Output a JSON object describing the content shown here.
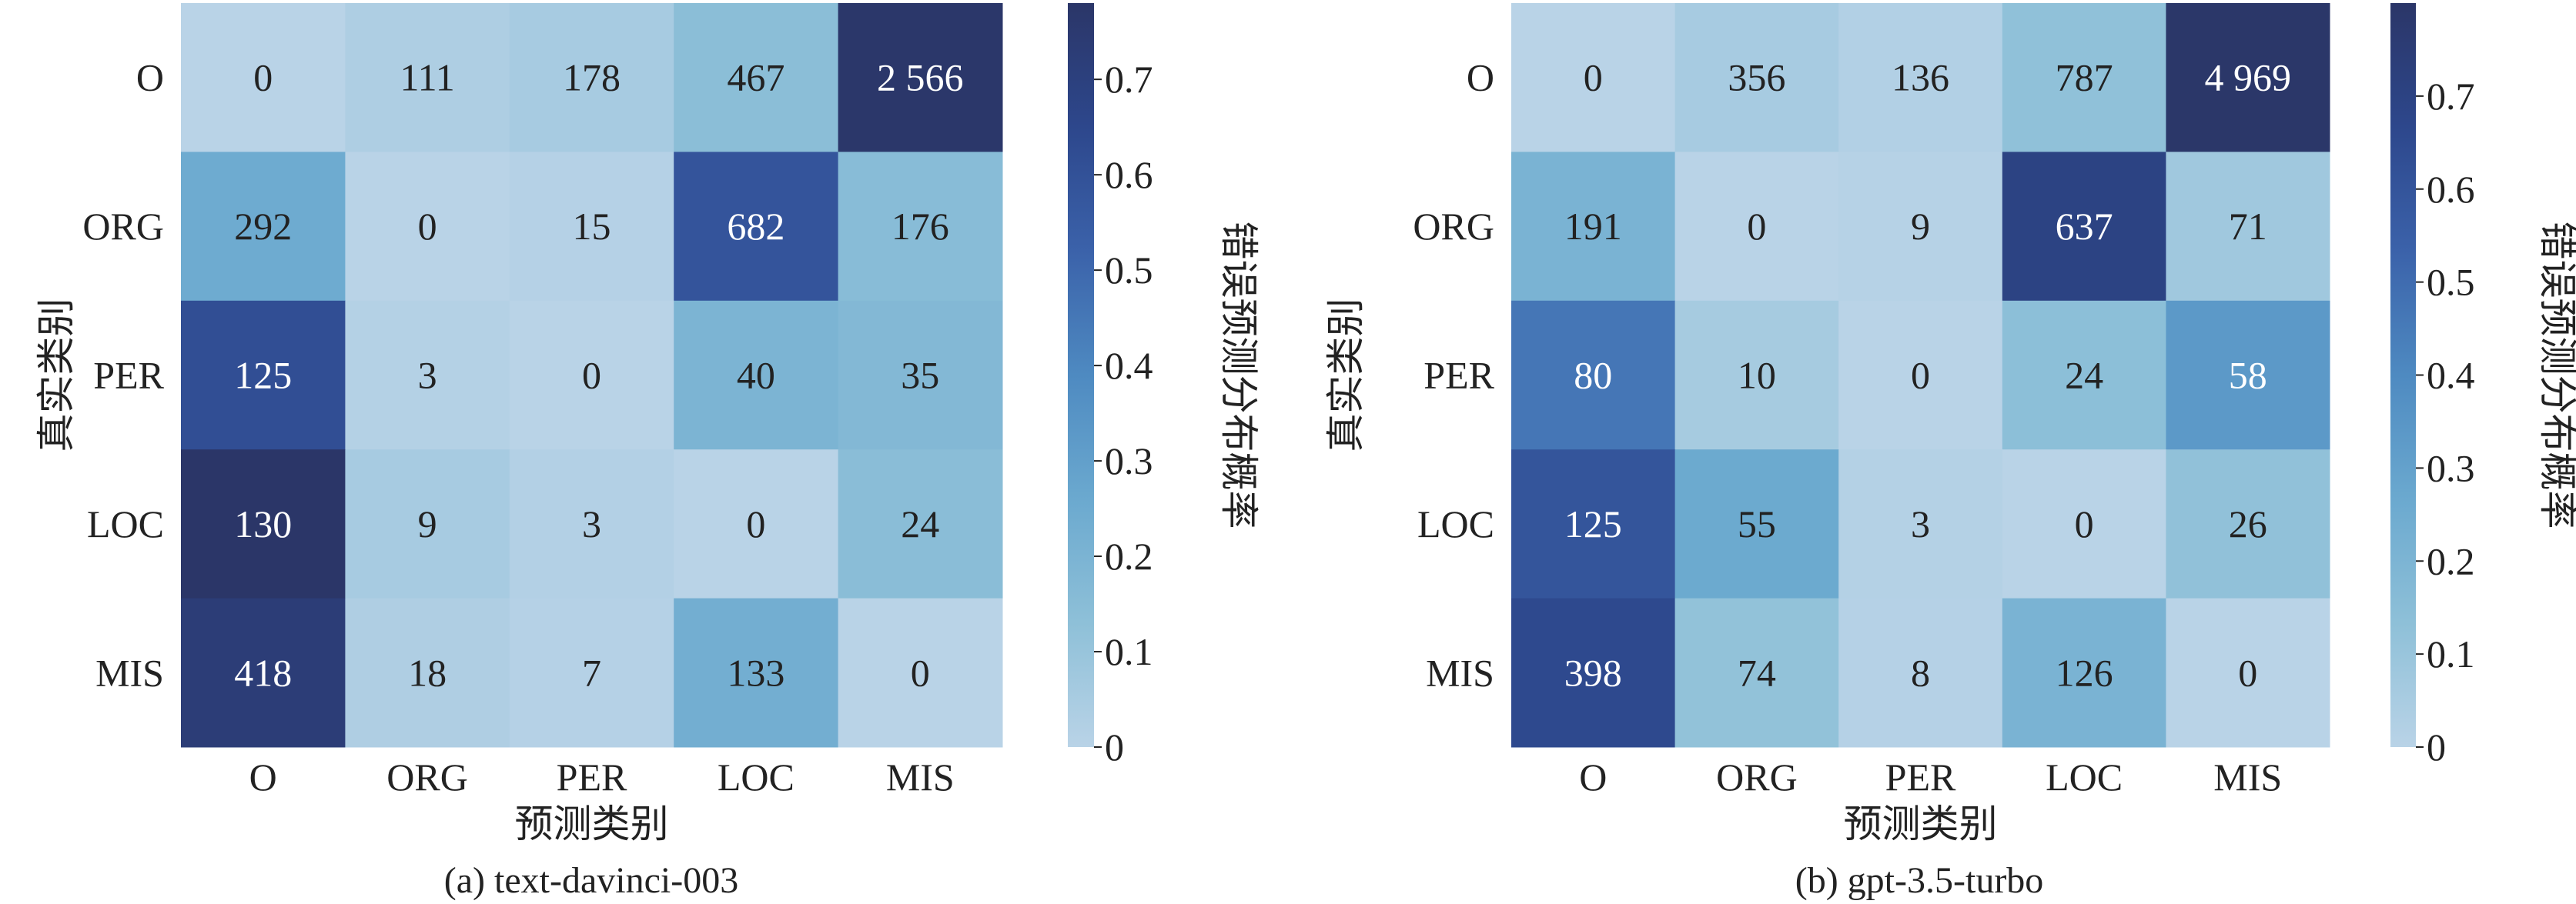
{
  "chart_data": [
    {
      "type": "heatmap",
      "caption": "(a)  text-davinci-003",
      "xlabel": "预测类别",
      "ylabel": "真实类别",
      "colorbar_label": "错误预测分布概率",
      "colorbar_range": [
        0,
        0.78
      ],
      "colorbar_ticks": [
        "0",
        "0.1",
        "0.2",
        "0.3",
        "0.4",
        "0.5",
        "0.6",
        "0.7"
      ],
      "x_categories": [
        "O",
        "ORG",
        "PER",
        "LOC",
        "MIS"
      ],
      "y_categories": [
        "O",
        "ORG",
        "PER",
        "LOC",
        "MIS"
      ],
      "values": [
        [
          0,
          111,
          178,
          467,
          2566
        ],
        [
          292,
          0,
          15,
          682,
          176
        ],
        [
          125,
          3,
          0,
          40,
          35
        ],
        [
          130,
          9,
          3,
          0,
          24
        ],
        [
          418,
          18,
          7,
          133,
          0
        ]
      ],
      "labels": [
        [
          "0",
          "111",
          "178",
          "467",
          "2 566"
        ],
        [
          "292",
          "0",
          "15",
          "682",
          "176"
        ],
        [
          "125",
          "3",
          "0",
          "40",
          "35"
        ],
        [
          "130",
          "9",
          "3",
          "0",
          "24"
        ],
        [
          "418",
          "18",
          "7",
          "133",
          "0"
        ]
      ]
    },
    {
      "type": "heatmap",
      "caption": "(b)  gpt-3.5-turbo",
      "xlabel": "预测类别",
      "ylabel": "真实类别",
      "colorbar_label": "错误预测分布概率",
      "colorbar_range": [
        0,
        0.8
      ],
      "colorbar_ticks": [
        "0",
        "0.1",
        "0.2",
        "0.3",
        "0.4",
        "0.5",
        "0.6",
        "0.7"
      ],
      "x_categories": [
        "O",
        "ORG",
        "PER",
        "LOC",
        "MIS"
      ],
      "y_categories": [
        "O",
        "ORG",
        "PER",
        "LOC",
        "MIS"
      ],
      "values": [
        [
          0,
          356,
          136,
          787,
          4969
        ],
        [
          191,
          0,
          9,
          637,
          71
        ],
        [
          80,
          10,
          0,
          24,
          58
        ],
        [
          125,
          55,
          3,
          0,
          26
        ],
        [
          398,
          74,
          8,
          126,
          0
        ]
      ],
      "labels": [
        [
          "0",
          "356",
          "136",
          "787",
          "4 969"
        ],
        [
          "191",
          "0",
          "9",
          "637",
          "71"
        ],
        [
          "80",
          "10",
          "0",
          "24",
          "58"
        ],
        [
          "125",
          "55",
          "3",
          "0",
          "26"
        ],
        [
          "398",
          "74",
          "8",
          "126",
          "0"
        ]
      ]
    }
  ],
  "colormap": [
    "#b9d3e7",
    "#8ec0d8",
    "#6ba9cf",
    "#4e8ac1",
    "#3b62aa",
    "#2d478c",
    "#2b3668"
  ]
}
